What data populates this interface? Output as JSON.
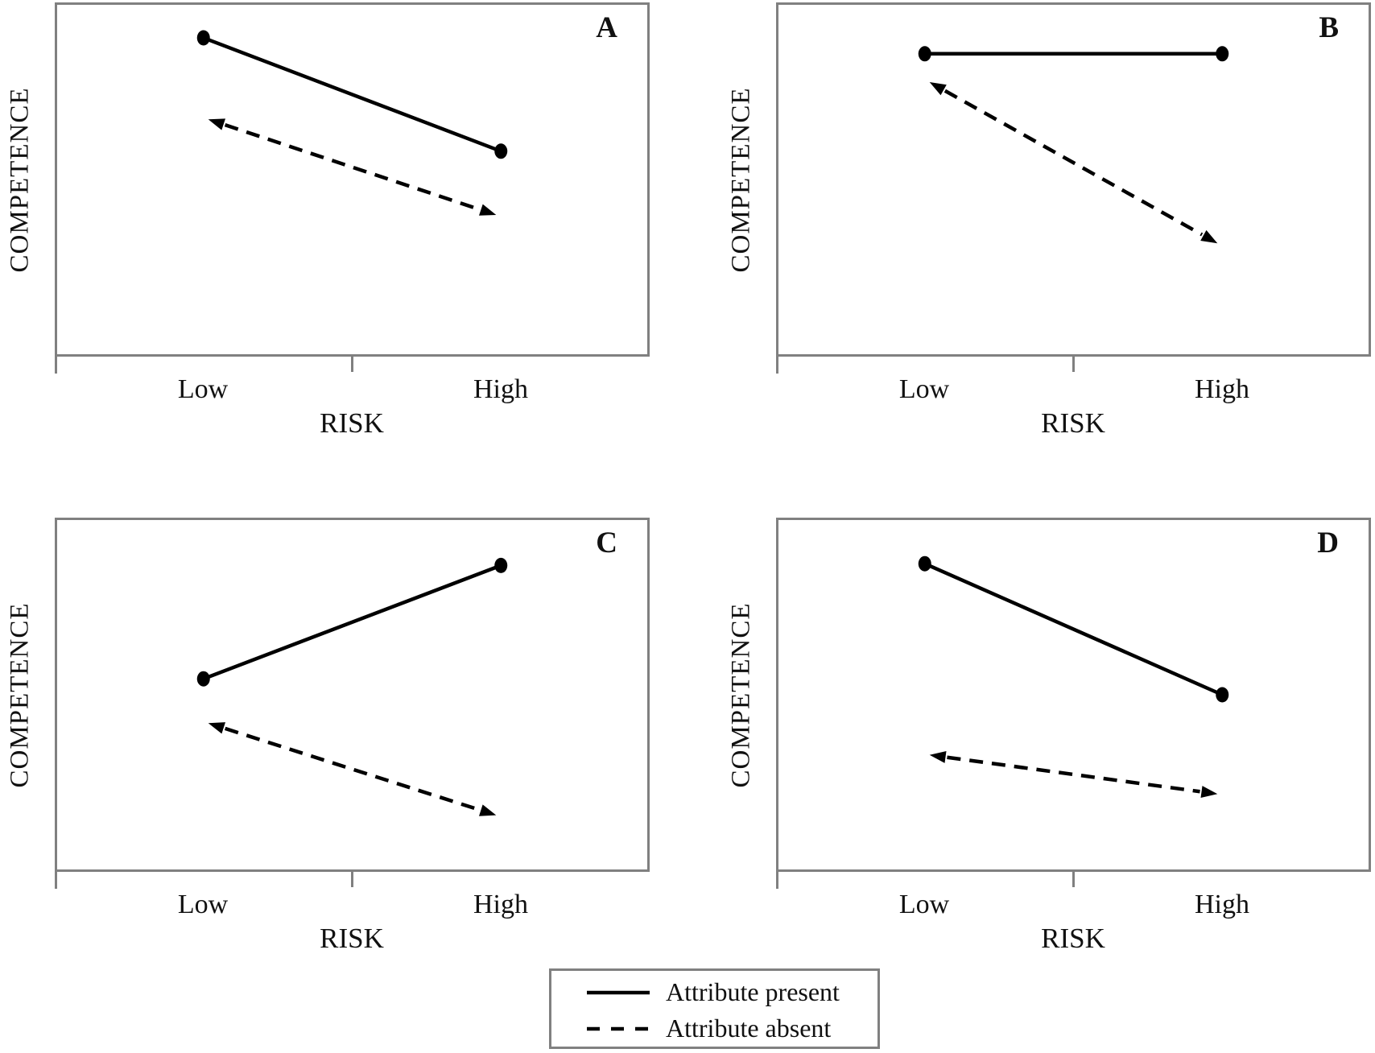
{
  "figure": {
    "y_axis_label": "COMPETENCE",
    "x_axis_label": "RISK",
    "x_tick_labels": [
      "Low",
      "High"
    ],
    "legend": {
      "items": [
        {
          "style": "solid",
          "label": "Attribute present"
        },
        {
          "style": "dashed",
          "label": "Attribute absent"
        }
      ]
    },
    "colors": {
      "line": "#000000",
      "frame": "#808080",
      "text": "#111111"
    }
  },
  "chart_data": [
    {
      "panel": "A",
      "type": "line",
      "x_categories": [
        "Low",
        "High"
      ],
      "xlabel": "RISK",
      "ylabel": "COMPETENCE",
      "y_scale": "relative competence (0-1), axis unlabeled",
      "series": [
        {
          "name": "Attribute present",
          "style": "solid",
          "marker": "dot",
          "values": [
            0.9,
            0.58
          ]
        },
        {
          "name": "Attribute absent",
          "style": "dashed",
          "marker": "double-arrow",
          "values": [
            0.67,
            0.4
          ]
        }
      ]
    },
    {
      "panel": "B",
      "type": "line",
      "x_categories": [
        "Low",
        "High"
      ],
      "xlabel": "RISK",
      "ylabel": "COMPETENCE",
      "y_scale": "relative competence (0-1), axis unlabeled",
      "series": [
        {
          "name": "Attribute present",
          "style": "solid",
          "marker": "dot",
          "values": [
            0.855,
            0.855
          ]
        },
        {
          "name": "Attribute absent",
          "style": "dashed",
          "marker": "double-arrow",
          "values": [
            0.775,
            0.32
          ]
        }
      ]
    },
    {
      "panel": "C",
      "type": "line",
      "x_categories": [
        "Low",
        "High"
      ],
      "xlabel": "RISK",
      "ylabel": "COMPETENCE",
      "y_scale": "relative competence (0-1), axis unlabeled",
      "series": [
        {
          "name": "Attribute present",
          "style": "solid",
          "marker": "dot",
          "values": [
            0.545,
            0.865
          ]
        },
        {
          "name": "Attribute absent",
          "style": "dashed",
          "marker": "double-arrow",
          "values": [
            0.42,
            0.16
          ]
        }
      ]
    },
    {
      "panel": "D",
      "type": "line",
      "x_categories": [
        "Low",
        "High"
      ],
      "xlabel": "RISK",
      "ylabel": "COMPETENCE",
      "y_scale": "relative competence (0-1), axis unlabeled",
      "series": [
        {
          "name": "Attribute present",
          "style": "solid",
          "marker": "dot",
          "values": [
            0.87,
            0.5
          ]
        },
        {
          "name": "Attribute absent",
          "style": "dashed",
          "marker": "double-arrow",
          "values": [
            0.33,
            0.22
          ]
        }
      ]
    }
  ]
}
